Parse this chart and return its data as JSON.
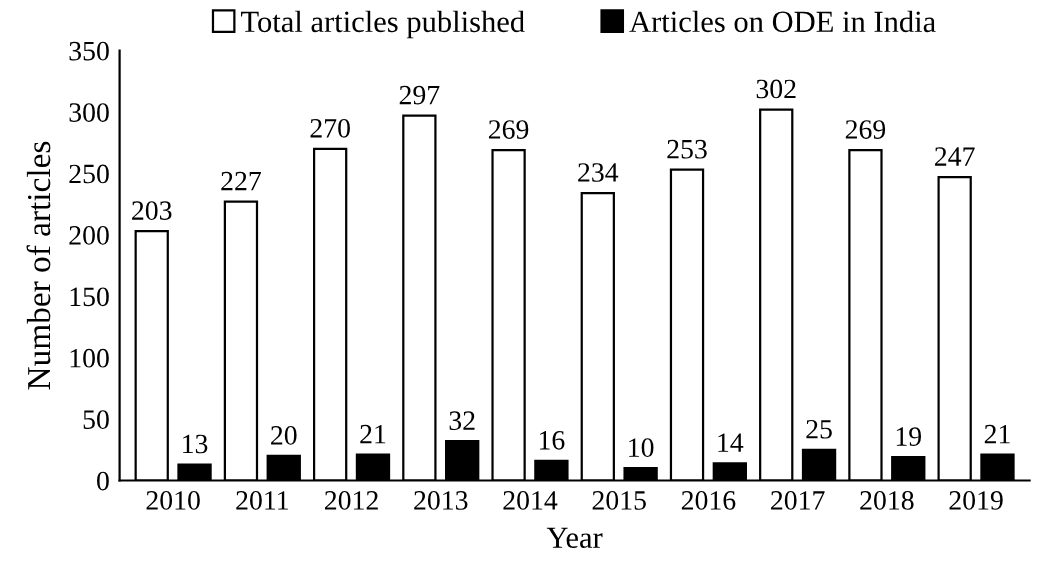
{
  "chart_data": {
    "type": "bar",
    "xlabel": "Year",
    "ylabel": "Number of articles",
    "categories": [
      "2010",
      "2011",
      "2012",
      "2013",
      "2014",
      "2015",
      "2016",
      "2017",
      "2018",
      "2019"
    ],
    "series": [
      {
        "name": "Total articles published",
        "color": "#ffffff",
        "values": [
          203,
          227,
          270,
          297,
          269,
          234,
          253,
          302,
          269,
          247
        ]
      },
      {
        "name": "Articles on ODE in India",
        "color": "#000000",
        "values": [
          13,
          20,
          21,
          32,
          16,
          10,
          14,
          25,
          19,
          21
        ]
      }
    ],
    "ylim": [
      0,
      350
    ],
    "yticks": [
      0,
      50,
      100,
      150,
      200,
      250,
      300,
      350
    ],
    "grid": false,
    "legend": "top",
    "data_labels": true
  }
}
